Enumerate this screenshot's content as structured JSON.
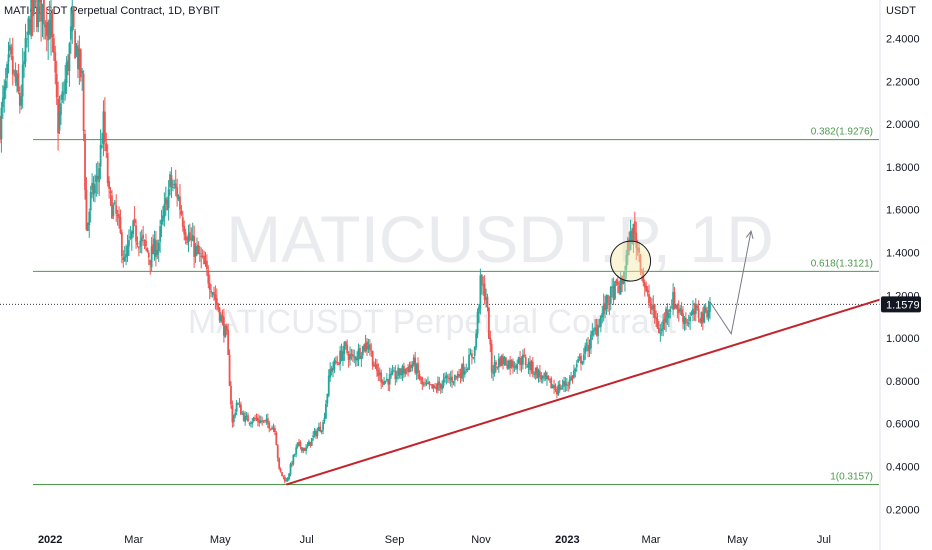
{
  "header": {
    "title": "MATICUSDT Perpetual Contract, 1D, BYBIT",
    "unit": "USDT"
  },
  "watermark": {
    "symbol": "MATICUSDT.P, 1D",
    "description": "MATICUSDT Perpetual Contract"
  },
  "colors": {
    "up": "#26a69a",
    "down": "#ef5350",
    "fib": "#4c9a4c",
    "trendline": "#c2242b",
    "projection": "#787b86",
    "highlight_fill": "#f6e9a8",
    "badge": "#131722"
  },
  "chart_data": {
    "type": "candlestick",
    "title": "MATICUSDT Perpetual Contract, 1D, BYBIT",
    "ylabel": "USDT",
    "y_scale": "linear",
    "ylim": [
      0.15,
      2.58
    ],
    "y_ticks": [
      "2.4000",
      "2.2000",
      "2.0000",
      "1.8000",
      "1.6000",
      "1.4000",
      "1.2000",
      "1.0000",
      "0.8000",
      "0.6000",
      "0.4000",
      "0.2000"
    ],
    "x_ticks": [
      {
        "label": "2022",
        "date": "2022-01-01",
        "bold": true
      },
      {
        "label": "Mar",
        "date": "2022-03-01",
        "bold": false
      },
      {
        "label": "May",
        "date": "2022-05-01",
        "bold": false
      },
      {
        "label": "Jul",
        "date": "2022-07-01",
        "bold": false
      },
      {
        "label": "Sep",
        "date": "2022-09-01",
        "bold": false
      },
      {
        "label": "Nov",
        "date": "2022-11-01",
        "bold": false
      },
      {
        "label": "2023",
        "date": "2023-01-01",
        "bold": true
      },
      {
        "label": "Mar",
        "date": "2023-03-01",
        "bold": false
      },
      {
        "label": "May",
        "date": "2023-05-01",
        "bold": false
      },
      {
        "label": "Jul",
        "date": "2023-07-01",
        "bold": false
      }
    ],
    "xlim": [
      "2021-11-28",
      "2023-08-11"
    ],
    "close_path": [
      [
        "2021-11-28",
        2.0
      ],
      [
        "2021-12-05",
        2.3
      ],
      [
        "2021-12-12",
        2.1
      ],
      [
        "2021-12-19",
        2.5
      ],
      [
        "2021-12-27",
        2.55
      ],
      [
        "2022-01-03",
        2.45
      ],
      [
        "2022-01-08",
        2.0
      ],
      [
        "2022-01-12",
        2.15
      ],
      [
        "2022-01-18",
        2.45
      ],
      [
        "2022-01-25",
        2.2
      ],
      [
        "2022-01-28",
        1.5
      ],
      [
        "2022-01-31",
        1.65
      ],
      [
        "2022-02-05",
        1.75
      ],
      [
        "2022-02-09",
        2.0
      ],
      [
        "2022-02-13",
        1.65
      ],
      [
        "2022-02-19",
        1.55
      ],
      [
        "2022-02-24",
        1.35
      ],
      [
        "2022-03-02",
        1.5
      ],
      [
        "2022-03-08",
        1.45
      ],
      [
        "2022-03-14",
        1.38
      ],
      [
        "2022-03-20",
        1.45
      ],
      [
        "2022-03-28",
        1.72
      ],
      [
        "2022-04-02",
        1.68
      ],
      [
        "2022-04-08",
        1.5
      ],
      [
        "2022-04-14",
        1.42
      ],
      [
        "2022-04-20",
        1.35
      ],
      [
        "2022-04-26",
        1.25
      ],
      [
        "2022-05-02",
        1.12
      ],
      [
        "2022-05-07",
        1.0
      ],
      [
        "2022-05-11",
        0.6
      ],
      [
        "2022-05-14",
        0.7
      ],
      [
        "2022-05-20",
        0.62
      ],
      [
        "2022-05-28",
        0.62
      ],
      [
        "2022-06-05",
        0.6
      ],
      [
        "2022-06-10",
        0.58
      ],
      [
        "2022-06-13",
        0.38
      ],
      [
        "2022-06-18",
        0.33
      ],
      [
        "2022-06-22",
        0.42
      ],
      [
        "2022-06-26",
        0.5
      ],
      [
        "2022-07-02",
        0.48
      ],
      [
        "2022-07-08",
        0.55
      ],
      [
        "2022-07-14",
        0.6
      ],
      [
        "2022-07-19",
        0.85
      ],
      [
        "2022-07-25",
        0.9
      ],
      [
        "2022-07-29",
        0.95
      ],
      [
        "2022-08-04",
        0.9
      ],
      [
        "2022-08-10",
        0.95
      ],
      [
        "2022-08-15",
        0.98
      ],
      [
        "2022-08-20",
        0.85
      ],
      [
        "2022-08-26",
        0.8
      ],
      [
        "2022-09-02",
        0.82
      ],
      [
        "2022-09-09",
        0.85
      ],
      [
        "2022-09-16",
        0.88
      ],
      [
        "2022-09-22",
        0.78
      ],
      [
        "2022-09-30",
        0.76
      ],
      [
        "2022-10-08",
        0.8
      ],
      [
        "2022-10-16",
        0.82
      ],
      [
        "2022-10-24",
        0.88
      ],
      [
        "2022-10-29",
        0.95
      ],
      [
        "2022-11-02",
        1.25
      ],
      [
        "2022-11-06",
        1.2
      ],
      [
        "2022-11-10",
        0.85
      ],
      [
        "2022-11-16",
        0.9
      ],
      [
        "2022-11-24",
        0.88
      ],
      [
        "2022-12-02",
        0.9
      ],
      [
        "2022-12-10",
        0.85
      ],
      [
        "2022-12-18",
        0.8
      ],
      [
        "2022-12-26",
        0.76
      ],
      [
        "2023-01-04",
        0.8
      ],
      [
        "2023-01-10",
        0.88
      ],
      [
        "2023-01-16",
        0.95
      ],
      [
        "2023-01-23",
        1.05
      ],
      [
        "2023-01-29",
        1.15
      ],
      [
        "2023-02-04",
        1.22
      ],
      [
        "2023-02-10",
        1.25
      ],
      [
        "2023-02-15",
        1.45
      ],
      [
        "2023-02-18",
        1.5
      ],
      [
        "2023-02-22",
        1.4
      ],
      [
        "2023-02-27",
        1.2
      ],
      [
        "2023-03-04",
        1.12
      ],
      [
        "2023-03-09",
        1.02
      ],
      [
        "2023-03-13",
        1.12
      ],
      [
        "2023-03-18",
        1.18
      ],
      [
        "2023-03-23",
        1.12
      ],
      [
        "2023-03-28",
        1.08
      ],
      [
        "2023-04-03",
        1.12
      ],
      [
        "2023-04-08",
        1.1
      ],
      [
        "2023-04-13",
        1.16
      ]
    ],
    "levels": [
      {
        "label": "0.382(1.9276)",
        "value": 1.9276
      },
      {
        "label": "0.618(1.3121)",
        "value": 1.3121
      },
      {
        "label": "1(0.3157)",
        "value": 0.3157
      }
    ],
    "last_price": {
      "value": 1.1579,
      "label": "1.1579"
    },
    "trendline": {
      "start": [
        "2022-06-18",
        0.3157
      ],
      "end": [
        "2023-08-11",
        1.18
      ]
    },
    "projection_path": [
      [
        "2023-04-13",
        1.17
      ],
      [
        "2023-04-28",
        1.02
      ],
      [
        "2023-05-12",
        1.5
      ]
    ],
    "highlight": {
      "date": "2023-02-16",
      "value": 1.36
    }
  }
}
